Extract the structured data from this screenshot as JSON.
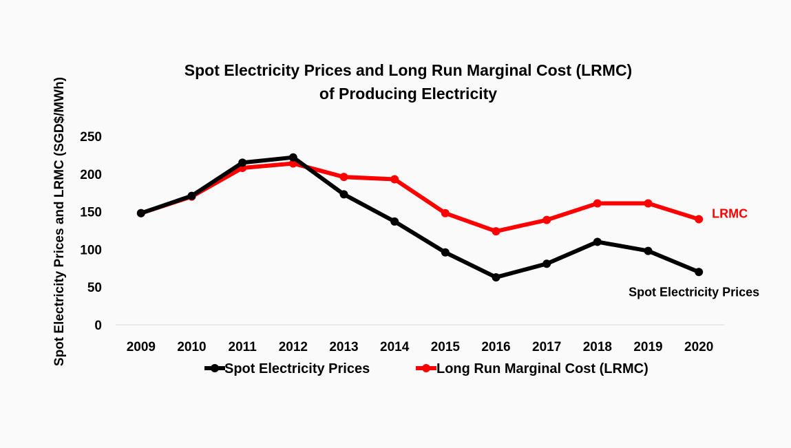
{
  "chart_data": {
    "type": "line",
    "title": [
      "Spot Electricity Prices and Long Run Marginal Cost (LRMC)",
      "of Producing Electricity"
    ],
    "xlabel": "",
    "ylabel": "Spot Electricity Prices and LRMC (SGD$/MWh)",
    "categories": [
      "2009",
      "2010",
      "2011",
      "2012",
      "2013",
      "2014",
      "2015",
      "2016",
      "2017",
      "2018",
      "2019",
      "2020"
    ],
    "y_ticks": [
      0,
      50,
      100,
      150,
      200,
      250
    ],
    "ylim": [
      0,
      250
    ],
    "grid": false,
    "legend": "bottom",
    "series": [
      {
        "name": "Spot Electricity Prices",
        "end_label": "Spot Electricity Prices",
        "color": "#000000",
        "values": [
          148,
          171,
          215,
          222,
          173,
          137,
          96,
          63,
          81,
          110,
          98,
          70
        ]
      },
      {
        "name": "Long Run Marginal Cost (LRMC)",
        "end_label": "LRMC",
        "color": "#ff0000",
        "values": [
          148,
          170,
          208,
          214,
          196,
          193,
          148,
          124,
          139,
          161,
          161,
          140
        ]
      }
    ]
  }
}
